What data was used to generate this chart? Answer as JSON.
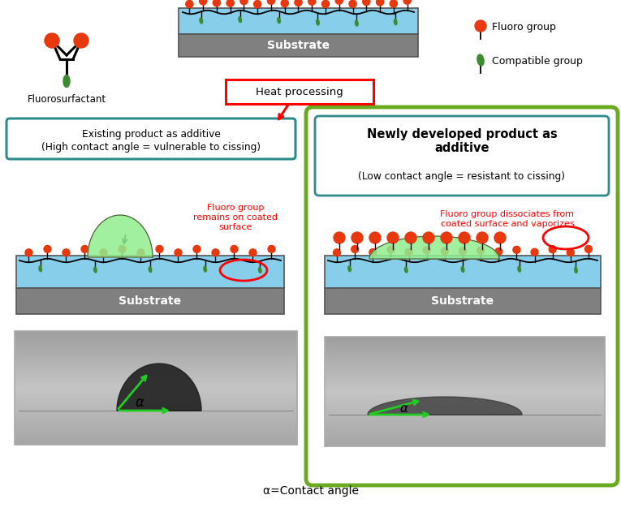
{
  "bg_color": "#ffffff",
  "fluoro_color": "#e8380d",
  "compatible_color": "#3a8c2f",
  "substrate_color": "#808080",
  "coating_color": "#87ceeb",
  "green_bubble_color": "#90ee90",
  "teal_box_color": "#2e8b8b",
  "olive_green_border": "#6aaa1e",
  "left_label_line1": "Existing product as additive",
  "left_label_line2": "(High contact angle = vulnerable to cissing)",
  "right_label_bold": "Newly developed product as\nadditive",
  "right_label_normal": "(Low contact angle = resistant to cissing)",
  "left_annotation": "Fluoro group\nremains on coated\nsurface",
  "right_annotation": "Fluoro group dissociates from\ncoated surface and vaporizes",
  "heat_label": "Heat processing",
  "fluoro_group_label": "Fluoro group",
  "compatible_group_label": "Compatible group",
  "fluorosurfactant_label": "Fluorosurfactant",
  "substrate_label": "Substrate",
  "alpha_label": "α=Contact angle"
}
